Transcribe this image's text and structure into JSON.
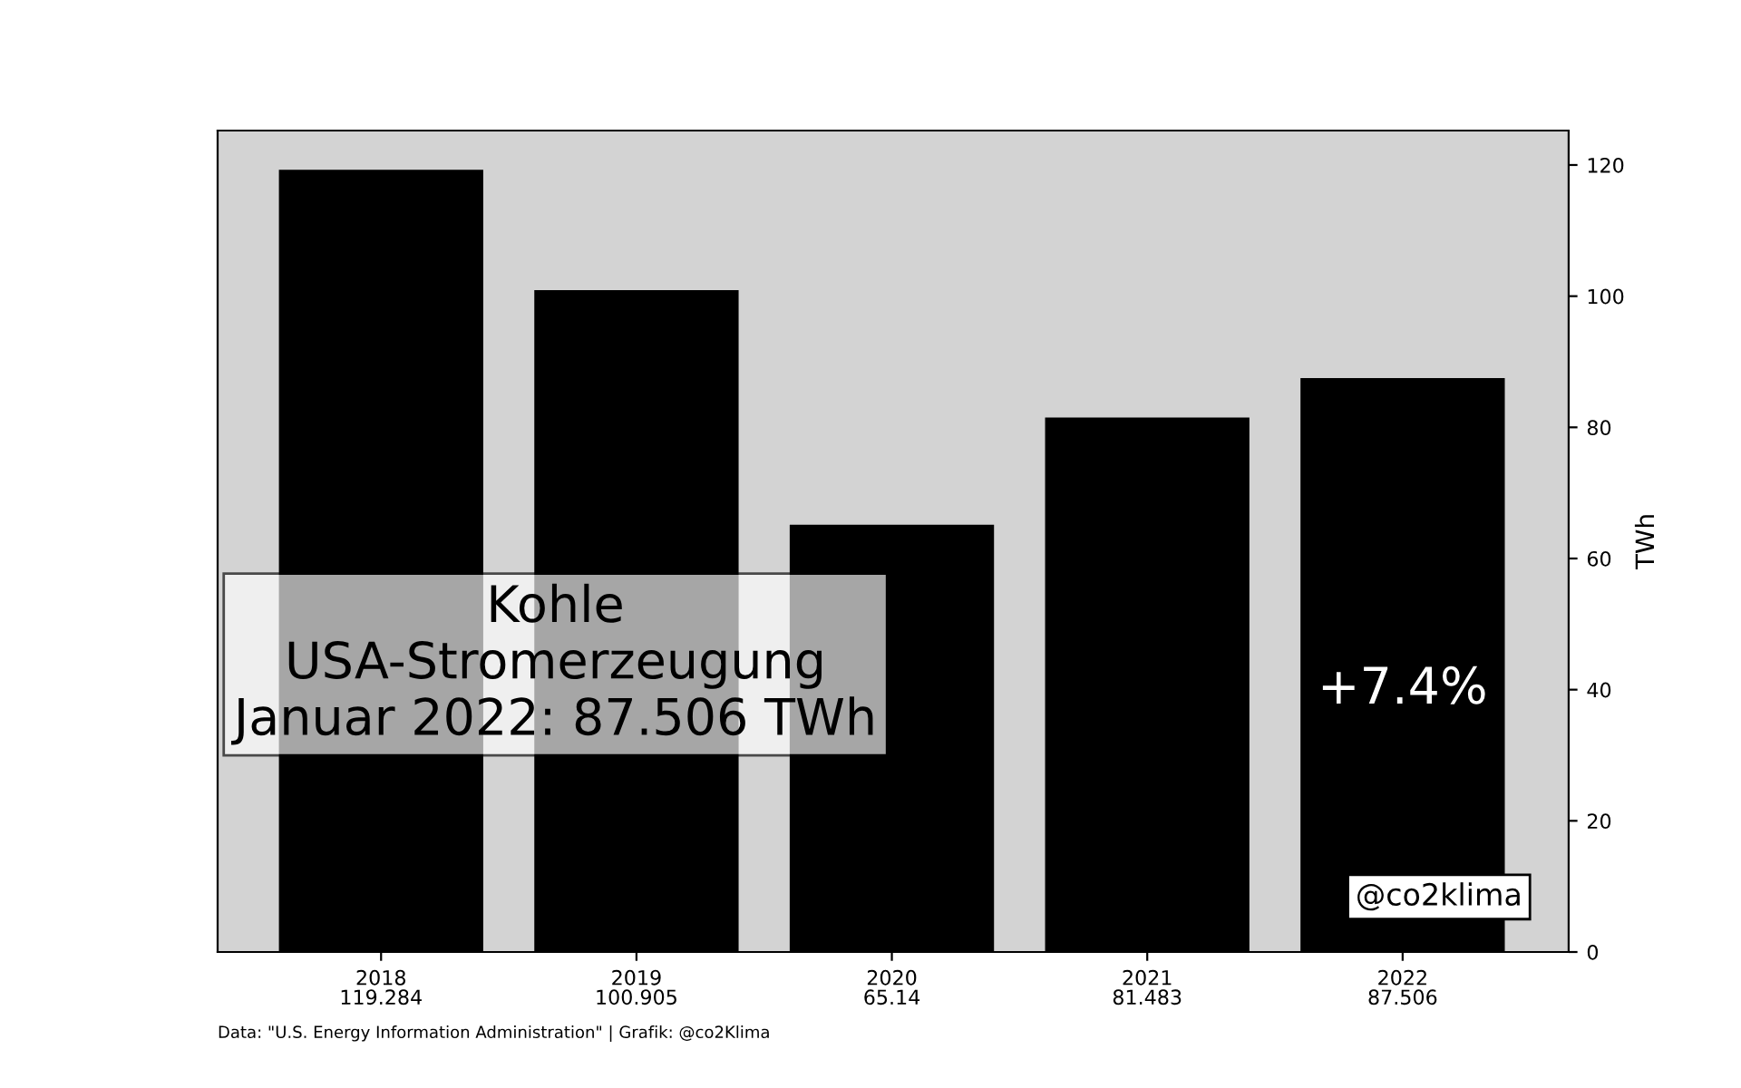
{
  "chart_data": {
    "type": "bar",
    "categories": [
      "2018",
      "2019",
      "2020",
      "2021",
      "2022"
    ],
    "values": [
      119.284,
      100.905,
      65.14,
      81.483,
      87.506
    ],
    "color": "#000000",
    "data_labels": true,
    "ylabel": "TWh",
    "ylim": [
      0,
      125.25
    ],
    "yticks": [
      0,
      20,
      40,
      60,
      80,
      100,
      120
    ],
    "grid": false,
    "legend": false,
    "annotations": [
      "Kohle\nUSA-Stromerzeugung\nJanuar 2022: 87.506 TWh",
      "+7.4%",
      "@co2klima",
      "Data: \"U.S. Energy Information Administration\" | Grafik: @co2Klima"
    ]
  }
}
